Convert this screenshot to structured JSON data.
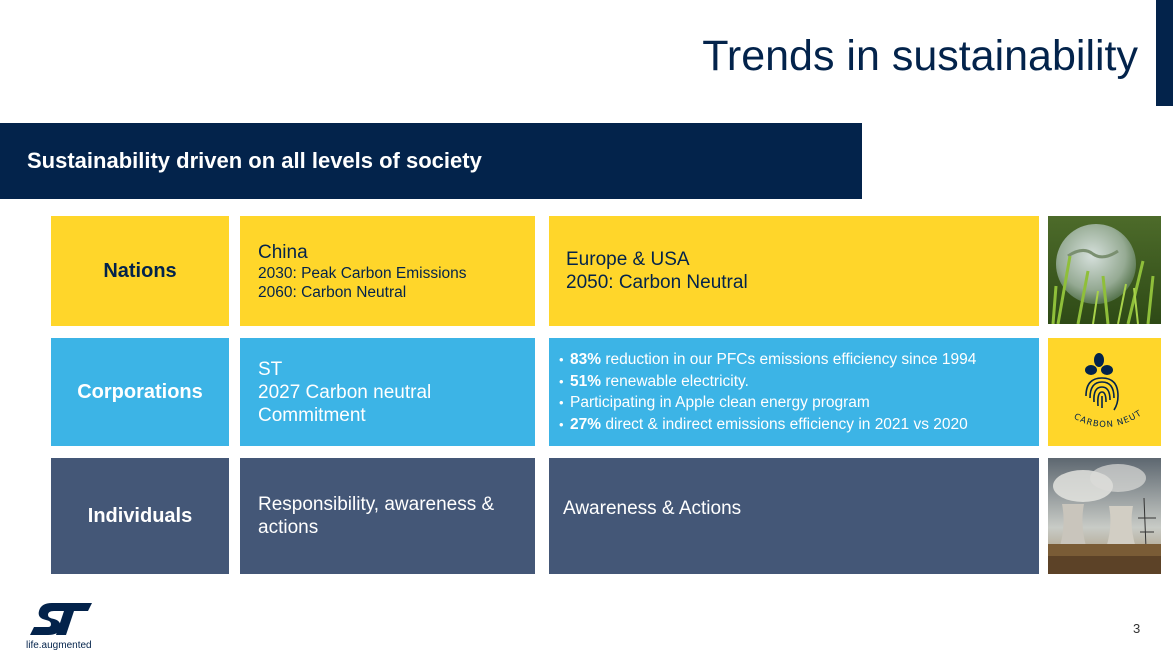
{
  "slide": {
    "title": "Trends in sustainability",
    "banner": "Sustainability driven on all levels of society",
    "page_number": "3"
  },
  "rows": {
    "nations": {
      "label": "Nations",
      "middle_title": "China",
      "middle_line1": "2030: Peak Carbon Emissions",
      "middle_line2": "2060: Carbon Neutral",
      "right_line1": "Europe & USA",
      "right_line2": "2050: Carbon Neutral",
      "image_icon": "globe-grass-image"
    },
    "corporations": {
      "label": "Corporations",
      "middle_line1": "ST",
      "middle_line2": "2027 Carbon neutral",
      "middle_line3": "Commitment",
      "bullets": [
        {
          "bold": "83%",
          "text": " reduction in our PFCs emissions efficiency since 1994"
        },
        {
          "bold": "51%",
          "text": " renewable electricity."
        },
        {
          "bold": "",
          "text": "Participating in Apple clean energy program"
        },
        {
          "bold": "27%",
          "text": " direct & indirect emissions efficiency in 2021 vs 2020"
        }
      ],
      "badge_text": "CARBON NEUTRAL"
    },
    "individuals": {
      "label": "Individuals",
      "middle_text": "Responsibility, awareness & actions",
      "right_text": "Awareness & Actions",
      "image_icon": "cooling-towers-image"
    }
  },
  "logo": {
    "mark": "ST",
    "tagline": "life.augmented"
  },
  "colors": {
    "navy": "#03234b",
    "yellow": "#ffd62a",
    "blue": "#3cb4e6",
    "slate": "#445777"
  }
}
